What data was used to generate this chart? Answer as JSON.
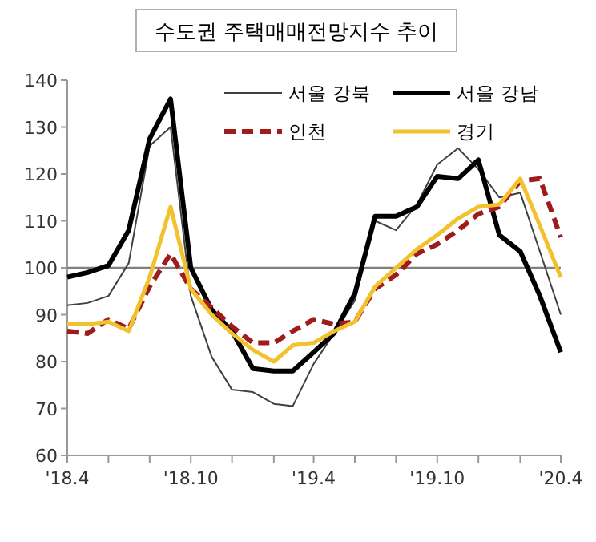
{
  "chart_data": {
    "type": "line",
    "title": "수도권 주택매매전망지수 추이",
    "x": [
      "2018-04",
      "2018-05",
      "2018-06",
      "2018-07",
      "2018-08",
      "2018-09",
      "2018-10",
      "2018-11",
      "2018-12",
      "2019-01",
      "2019-02",
      "2019-03",
      "2019-04",
      "2019-05",
      "2019-06",
      "2019-07",
      "2019-08",
      "2019-09",
      "2019-10",
      "2019-11",
      "2019-12",
      "2020-01",
      "2020-02",
      "2020-03",
      "2020-04"
    ],
    "series": [
      {
        "name": "서울 강북",
        "color": "#404040",
        "values": [
          92,
          92.5,
          94,
          101,
          126,
          130,
          94,
          81,
          74,
          73.5,
          71,
          70.5,
          79.5,
          86,
          93,
          110,
          108,
          113.5,
          122,
          125.5,
          121,
          115,
          116,
          103.5,
          90
        ]
      },
      {
        "name": "서울 강남",
        "color": "#000000",
        "values": [
          98,
          99,
          100.5,
          108,
          127.5,
          136,
          100,
          91,
          86.5,
          78.5,
          78,
          78,
          82,
          86,
          94.5,
          111,
          111,
          113,
          119.5,
          119,
          123,
          107,
          103.5,
          94,
          82
        ]
      },
      {
        "name": "인천",
        "color": "#a01c1c",
        "line_style": "dashed",
        "values": [
          86.5,
          86,
          89,
          87,
          96,
          103,
          95.5,
          91.5,
          87.5,
          84,
          84,
          86.5,
          89,
          88,
          88.5,
          95.5,
          98.5,
          103,
          105,
          108,
          111.5,
          113,
          118.5,
          119,
          106.5
        ]
      },
      {
        "name": "경기",
        "color": "#f2c12e",
        "values": [
          88,
          88,
          88.5,
          86.5,
          98,
          113,
          95.5,
          90,
          86,
          82.5,
          80,
          83.5,
          84,
          86.5,
          88.5,
          96,
          100,
          104,
          107,
          110.5,
          113,
          113.5,
          119,
          109,
          98
        ]
      }
    ],
    "xlim": [
      "2018-04",
      "2020-04"
    ],
    "xticks": [
      {
        "value": "2018-04",
        "label": "'18.4"
      },
      {
        "value": "2018-06",
        "label": null
      },
      {
        "value": "2018-08",
        "label": null
      },
      {
        "value": "2018-10",
        "label": "'18.10"
      },
      {
        "value": "2018-12",
        "label": null
      },
      {
        "value": "2019-02",
        "label": null
      },
      {
        "value": "2019-04",
        "label": "'19.4"
      },
      {
        "value": "2019-06",
        "label": null
      },
      {
        "value": "2019-08",
        "label": null
      },
      {
        "value": "2019-10",
        "label": "'19.10"
      },
      {
        "value": "2019-12",
        "label": null
      },
      {
        "value": "2020-02",
        "label": null
      },
      {
        "value": "2020-04",
        "label": "'20.4"
      }
    ],
    "ylim": [
      60,
      140
    ],
    "yticks": [
      60,
      70,
      80,
      90,
      100,
      110,
      120,
      130,
      140
    ],
    "ref_lines": [
      {
        "axis": "y",
        "value": 100,
        "color": "#7f7f7f"
      }
    ],
    "legend": "top right",
    "grid": false
  }
}
